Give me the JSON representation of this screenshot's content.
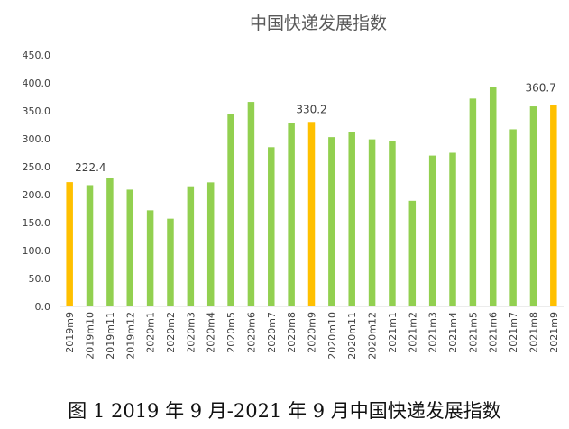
{
  "caption": "图 1  2019 年 9 月-2021 年 9 月中国快递发展指数",
  "colors": {
    "bar_default": "#92d050",
    "bar_highlight": "#ffc000",
    "axis": "#d9d9d9",
    "text": "#404040",
    "title": "#595959"
  },
  "chart_data": {
    "type": "bar",
    "title": "中国快递发展指数",
    "xlabel": "",
    "ylabel": "",
    "ylim": [
      0,
      450
    ],
    "yticks": [
      "0.0",
      "50.0",
      "100.0",
      "150.0",
      "200.0",
      "250.0",
      "300.0",
      "350.0",
      "400.0",
      "450.0"
    ],
    "grid": false,
    "legend": "none",
    "categories": [
      "2019m9",
      "2019m10",
      "2019m11",
      "2019m12",
      "2020m1",
      "2020m2",
      "2020m3",
      "2020m4",
      "2020m5",
      "2020m6",
      "2020m7",
      "2020m8",
      "2020m9",
      "2020m10",
      "2020m11",
      "2020m12",
      "2021m1",
      "2021m2",
      "2021m3",
      "2021m4",
      "2021m5",
      "2021m6",
      "2021m7",
      "2021m8",
      "2021m9"
    ],
    "values": [
      222.4,
      217,
      230,
      209,
      172,
      157,
      215,
      222,
      344,
      366,
      285,
      328,
      330.2,
      303,
      312,
      299,
      296,
      189,
      270,
      275,
      372,
      392,
      317,
      358,
      360.7
    ],
    "highlighted": [
      "2019m9",
      "2020m9",
      "2021m9"
    ],
    "data_labels": [
      {
        "category": "2019m9",
        "text": "222.4"
      },
      {
        "category": "2020m9",
        "text": "330.2"
      },
      {
        "category": "2021m9",
        "text": "360.7"
      }
    ]
  }
}
